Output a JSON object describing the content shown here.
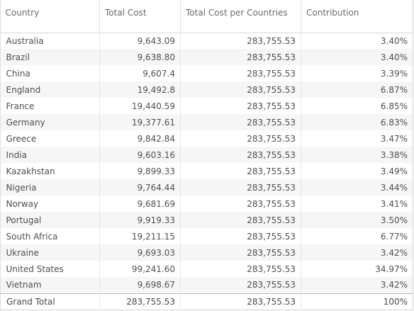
{
  "table": {
    "headers": {
      "country": "Country",
      "total_cost": "Total Cost",
      "total_cost_per_countries": "Total Cost per Countries",
      "contribution": "Contribution"
    },
    "rows": [
      {
        "country": "Australia",
        "total_cost": "9,643.09",
        "per_countries": "283,755.53",
        "contribution": "3.40%"
      },
      {
        "country": "Brazil",
        "total_cost": "9,638.80",
        "per_countries": "283,755.53",
        "contribution": "3.40%"
      },
      {
        "country": "China",
        "total_cost": "9,607.4",
        "per_countries": "283,755.53",
        "contribution": "3.39%"
      },
      {
        "country": "England",
        "total_cost": "19,492.8",
        "per_countries": "283,755.53",
        "contribution": "6.87%"
      },
      {
        "country": "France",
        "total_cost": "19,440.59",
        "per_countries": "283,755.53",
        "contribution": "6.85%"
      },
      {
        "country": "Germany",
        "total_cost": "19,377.61",
        "per_countries": "283,755.53",
        "contribution": "6.83%"
      },
      {
        "country": "Greece",
        "total_cost": "9,842.84",
        "per_countries": "283,755.53",
        "contribution": "3.47%"
      },
      {
        "country": "India",
        "total_cost": "9,603.16",
        "per_countries": "283,755.53",
        "contribution": "3.38%"
      },
      {
        "country": "Kazakhstan",
        "total_cost": "9,899.33",
        "per_countries": "283,755.53",
        "contribution": "3.49%"
      },
      {
        "country": "Nigeria",
        "total_cost": "9,764.44",
        "per_countries": "283,755.53",
        "contribution": "3.44%"
      },
      {
        "country": "Norway",
        "total_cost": "9,681.69",
        "per_countries": "283,755.53",
        "contribution": "3.41%"
      },
      {
        "country": "Portugal",
        "total_cost": "9,919.33",
        "per_countries": "283,755.53",
        "contribution": "3.50%"
      },
      {
        "country": "South Africa",
        "total_cost": "19,211.15",
        "per_countries": "283,755.53",
        "contribution": "6.77%"
      },
      {
        "country": "Ukraine",
        "total_cost": "9,693.03",
        "per_countries": "283,755.53",
        "contribution": "3.42%"
      },
      {
        "country": "United States",
        "total_cost": "99,241.60",
        "per_countries": "283,755.53",
        "contribution": "34.97%"
      },
      {
        "country": "Vietnam",
        "total_cost": "9,698.67",
        "per_countries": "283,755.53",
        "contribution": "3.42%"
      }
    ],
    "grand_total": {
      "label": "Grand Total",
      "total_cost": "283,755.53",
      "per_countries": "283,755.53",
      "contribution": "100%"
    }
  }
}
